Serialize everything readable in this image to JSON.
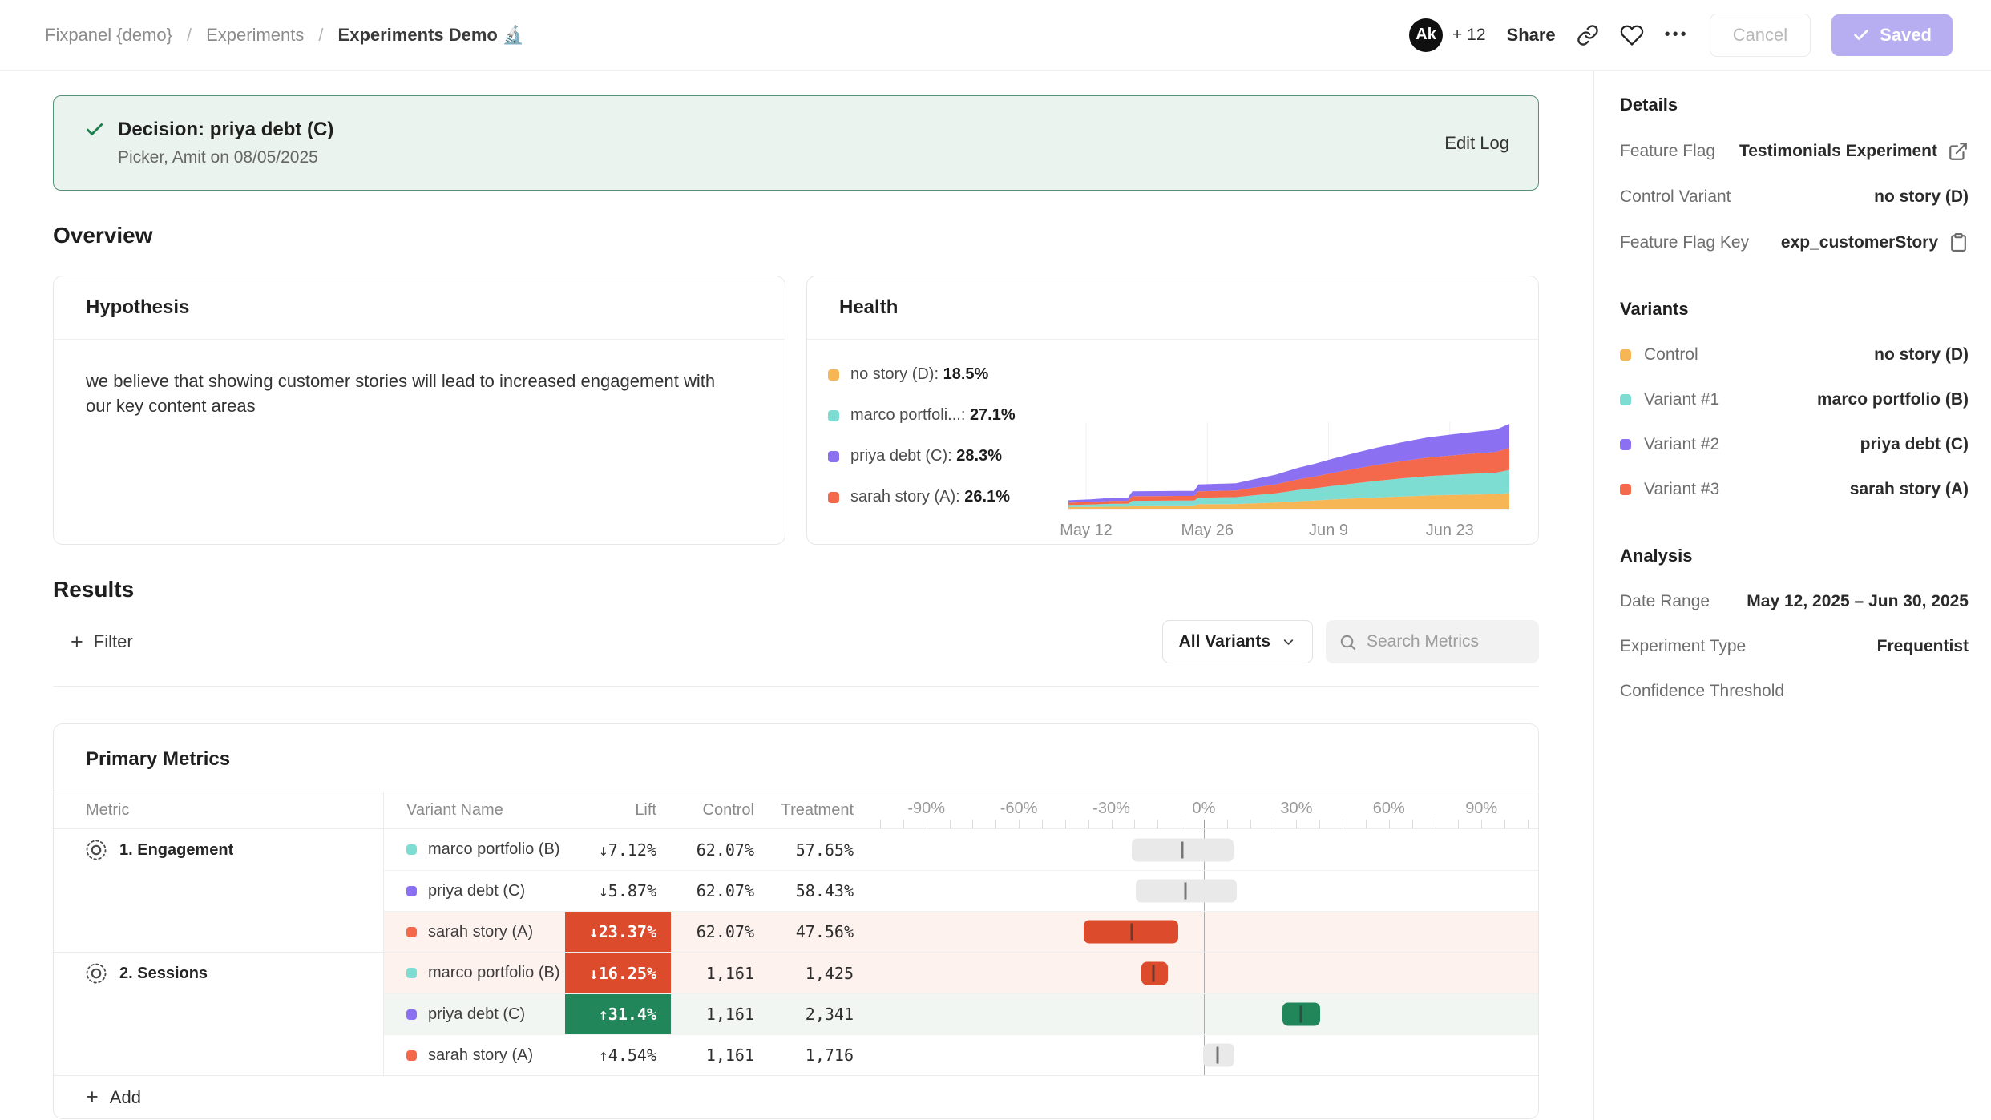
{
  "topbar": {
    "breadcrumb": [
      "Fixpanel {demo}",
      "Experiments",
      "Experiments Demo 🔬"
    ],
    "separator": "/",
    "avatar_initials": "Ak",
    "collaborators_more": "+ 12",
    "share_label": "Share",
    "more_dots": "•••",
    "cancel_label": "Cancel",
    "saved_label": "Saved"
  },
  "decision_banner": {
    "title": "Decision: priya debt (C)",
    "subtitle": "Picker, Amit on 08/05/2025",
    "action": "Edit Log"
  },
  "overview": {
    "title": "Overview",
    "hypothesis_title": "Hypothesis",
    "hypothesis_body": "we believe that showing customer stories will lead to increased engagement with our key content areas",
    "health_title": "Health"
  },
  "chart_data": {
    "type": "area",
    "stacked": true,
    "title": "Health",
    "legend": [
      {
        "label": "no story (D)",
        "value": "18.5%",
        "color": "#f6b656"
      },
      {
        "label": "marco portfoli...",
        "value": "27.1%",
        "color": "#7eddd3"
      },
      {
        "label": "priya debt (C)",
        "value": "28.3%",
        "color": "#8b70f2"
      },
      {
        "label": "sarah story (A)",
        "value": "26.1%",
        "color": "#f4694b"
      }
    ],
    "x_tick_labels": [
      "May 12",
      "May 26",
      "Jun 9",
      "Jun 23"
    ],
    "x_tick_positions": [
      0.04,
      0.315,
      0.59,
      0.865
    ],
    "x_range": [
      "May 12",
      "Jun 30"
    ],
    "series_bottom_to_top": [
      {
        "name": "no story (D)",
        "color": "#f6b656",
        "share": 0.185
      },
      {
        "name": "marco portfolio (B)",
        "color": "#7eddd3",
        "share": 0.271
      },
      {
        "name": "sarah story (A)",
        "color": "#f4694b",
        "share": 0.261
      },
      {
        "name": "priya debt (C)",
        "color": "#8b70f2",
        "share": 0.283
      }
    ],
    "x_samples": [
      0,
      0.05,
      0.1,
      0.135,
      0.145,
      0.25,
      0.285,
      0.295,
      0.38,
      0.42,
      0.47,
      0.52,
      0.56,
      0.6,
      0.645,
      0.7,
      0.755,
      0.815,
      0.87,
      0.93,
      0.97,
      1.0
    ],
    "totals": [
      0.1,
      0.11,
      0.13,
      0.13,
      0.205,
      0.21,
      0.21,
      0.285,
      0.3,
      0.345,
      0.4,
      0.48,
      0.53,
      0.59,
      0.65,
      0.72,
      0.78,
      0.84,
      0.875,
      0.91,
      0.93,
      1.0
    ]
  },
  "results": {
    "title": "Results",
    "filter_label": "Filter",
    "variants_dropdown": "All Variants",
    "search_placeholder": "Search Metrics",
    "primary_metrics": {
      "title": "Primary Metrics",
      "columns": {
        "metric": "Metric",
        "variant": "Variant Name",
        "lift": "Lift",
        "control": "Control",
        "treatment": "Treatment"
      },
      "axis": [
        {
          "label": "-90%",
          "value": -90
        },
        {
          "label": "-60%",
          "value": -60
        },
        {
          "label": "-30%",
          "value": -30
        },
        {
          "label": "0%",
          "value": 0
        },
        {
          "label": "30%",
          "value": 30
        },
        {
          "label": "60%",
          "value": 60
        },
        {
          "label": "90%",
          "value": 90
        }
      ],
      "groups": [
        {
          "name": "1. Engagement",
          "rows": [
            {
              "variant": "marco portfolio (B)",
              "color": "#7eddd3",
              "lift": "↓7.12%",
              "lift_cell": "none",
              "control": "62.07%",
              "treatment": "57.65%",
              "tint": "none",
              "ci": {
                "low": -23.3,
                "high": 9.6,
                "mid": -7.12,
                "color": "gray"
              }
            },
            {
              "variant": "priya debt (C)",
              "color": "#8b70f2",
              "lift": "↓5.87%",
              "lift_cell": "none",
              "control": "62.07%",
              "treatment": "58.43%",
              "tint": "none",
              "ci": {
                "low": -22.0,
                "high": 10.6,
                "mid": -5.87,
                "color": "gray"
              }
            },
            {
              "variant": "sarah story (A)",
              "color": "#f4694b",
              "lift": "↓23.37%",
              "lift_cell": "red",
              "control": "62.07%",
              "treatment": "47.56%",
              "tint": "pink",
              "ci": {
                "low": -38.9,
                "high": -8.3,
                "mid": -23.37,
                "color": "red"
              }
            }
          ]
        },
        {
          "name": "2. Sessions",
          "rows": [
            {
              "variant": "marco portfolio (B)",
              "color": "#7eddd3",
              "lift": "↓16.25%",
              "lift_cell": "red",
              "control": "1,161",
              "treatment": "1,425",
              "tint": "pink",
              "ci": {
                "low": -20.2,
                "high": -11.7,
                "mid": -16.25,
                "color": "red"
              }
            },
            {
              "variant": "priya debt (C)",
              "color": "#8b70f2",
              "lift": "↑31.4%",
              "lift_cell": "green",
              "control": "1,161",
              "treatment": "2,341",
              "tint": "green",
              "ci": {
                "low": 25.6,
                "high": 37.8,
                "mid": 31.4,
                "color": "green"
              }
            },
            {
              "variant": "sarah story (A)",
              "color": "#f4694b",
              "lift": "↑4.54%",
              "lift_cell": "none",
              "control": "1,161",
              "treatment": "1,716",
              "tint": "none",
              "ci": {
                "low": -0.3,
                "high": 9.8,
                "mid": 4.54,
                "color": "gray"
              }
            }
          ]
        }
      ],
      "add_label": "Add"
    }
  },
  "sidebar": {
    "details": {
      "title": "Details",
      "rows": [
        {
          "label": "Feature Flag",
          "value": "Testimonials Experiment",
          "icon": "external-link-icon"
        },
        {
          "label": "Control Variant",
          "value": "no story (D)",
          "icon": null
        },
        {
          "label": "Feature Flag Key",
          "value": "exp_customerStory",
          "icon": "clipboard-icon"
        }
      ]
    },
    "variants": {
      "title": "Variants",
      "rows": [
        {
          "label": "Control",
          "value": "no story (D)",
          "color": "#f6b656"
        },
        {
          "label": "Variant #1",
          "value": "marco portfolio (B)",
          "color": "#7eddd3"
        },
        {
          "label": "Variant #2",
          "value": "priya debt (C)",
          "color": "#8b70f2"
        },
        {
          "label": "Variant #3",
          "value": "sarah story (A)",
          "color": "#f4694b"
        }
      ]
    },
    "analysis": {
      "title": "Analysis",
      "rows": [
        {
          "label": "Date Range",
          "value": "May 12, 2025 – Jun 30, 2025"
        },
        {
          "label": "Experiment Type",
          "value": "Frequentist"
        },
        {
          "label": "Confidence Threshold",
          "value": ""
        }
      ]
    }
  },
  "colors": {
    "saved_button": "#b7aef2",
    "banner_bg": "#eaf3ee",
    "banner_border": "#579178",
    "banner_check_green": "#1e7d4d",
    "success_green": "#21865a",
    "danger_red": "#dc4b2b",
    "tint_negative_row": "#fdf2ee",
    "tint_positive_row": "#f2f6f3",
    "ci_gray": "#e9e9e9",
    "variant_yellow": "#f6b656",
    "variant_teal": "#7eddd3",
    "variant_purple": "#8b70f2",
    "variant_coral": "#f4694b"
  }
}
